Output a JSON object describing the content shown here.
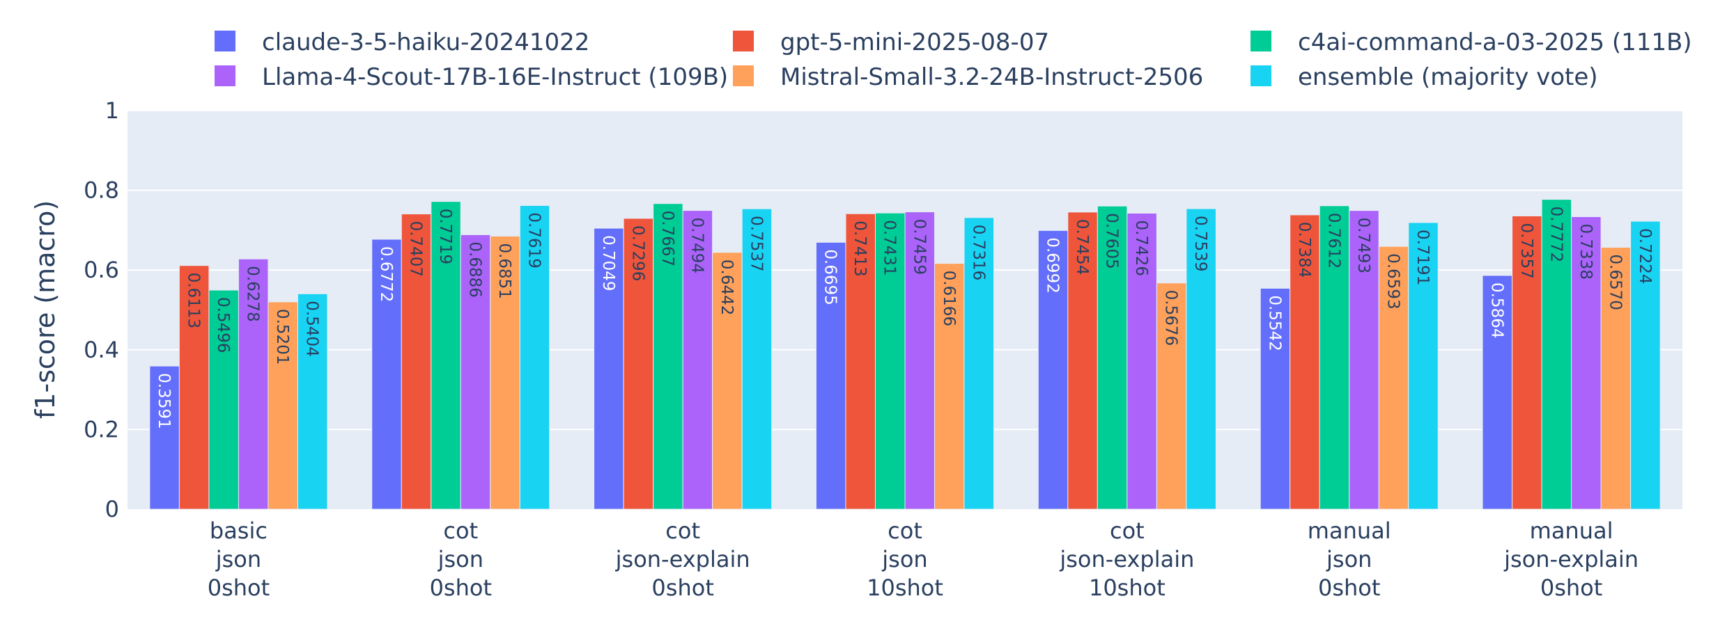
{
  "chart_data": {
    "type": "bar",
    "title": "",
    "xlabel": "",
    "ylabel": "f1-score (macro)",
    "ylim": [
      0,
      1
    ],
    "yticks": [
      "0",
      "0.2",
      "0.4",
      "0.6",
      "0.8",
      "1"
    ],
    "grid": true,
    "legend_position": "top",
    "categories": [
      [
        "basic",
        "json",
        "0shot"
      ],
      [
        "cot",
        "json",
        "0shot"
      ],
      [
        "cot",
        "json-explain",
        "0shot"
      ],
      [
        "cot",
        "json",
        "10shot"
      ],
      [
        "cot",
        "json-explain",
        "10shot"
      ],
      [
        "manual",
        "json",
        "0shot"
      ],
      [
        "manual",
        "json-explain",
        "0shot"
      ]
    ],
    "series": [
      {
        "name": "claude-3-5-haiku-20241022",
        "color": "#636efa",
        "label_color": "#ffffff",
        "values": [
          0.3591,
          0.6772,
          0.7049,
          0.6695,
          0.6992,
          0.5542,
          0.5864
        ]
      },
      {
        "name": "gpt-5-mini-2025-08-07",
        "color": "#ef553b",
        "label_color": "#2a3f5f",
        "values": [
          0.6113,
          0.7407,
          0.7296,
          0.7413,
          0.7454,
          0.7384,
          0.7357
        ]
      },
      {
        "name": "c4ai-command-a-03-2025 (111B)",
        "color": "#00cc96",
        "label_color": "#2a3f5f",
        "values": [
          0.5496,
          0.7719,
          0.7667,
          0.7431,
          0.7605,
          0.7612,
          0.7772
        ]
      },
      {
        "name": "Llama-4-Scout-17B-16E-Instruct (109B)",
        "color": "#ab63fa",
        "label_color": "#2a3f5f",
        "values": [
          0.6278,
          0.6886,
          0.7494,
          0.7459,
          0.7426,
          0.7493,
          0.7338
        ]
      },
      {
        "name": "Mistral-Small-3.2-24B-Instruct-2506",
        "color": "#ffa15a",
        "label_color": "#2a3f5f",
        "values": [
          0.5201,
          0.6851,
          0.6442,
          0.6166,
          0.5676,
          0.6593,
          0.657
        ]
      },
      {
        "name": "ensemble (majority vote)",
        "color": "#19d3f3",
        "label_color": "#2a3f5f",
        "values": [
          0.5404,
          0.7619,
          0.7537,
          0.7316,
          0.7539,
          0.7191,
          0.7224
        ]
      }
    ]
  }
}
